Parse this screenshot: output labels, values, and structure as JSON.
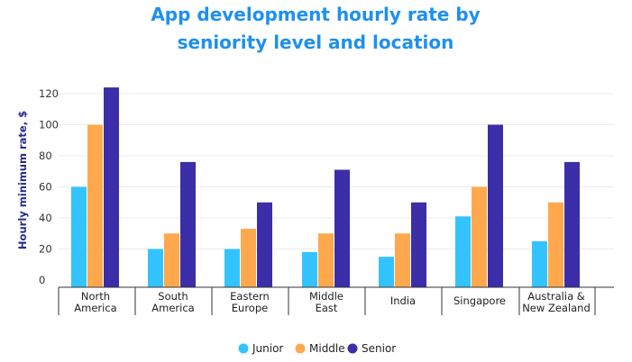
{
  "chart_data": {
    "type": "bar",
    "title_lines": [
      "App development hourly rate by",
      "seniority level and location"
    ],
    "ylabel": "Hourly minimum rate, $",
    "xlabel": "",
    "ylim": [
      0,
      130
    ],
    "yticks": [
      0,
      20,
      40,
      60,
      80,
      100,
      120
    ],
    "grid": true,
    "legend_position": "bottom-center",
    "categories": [
      [
        "North",
        "America"
      ],
      [
        "South",
        "America"
      ],
      [
        "Eastern",
        "Europe"
      ],
      [
        "Middle",
        "East"
      ],
      [
        "India"
      ],
      [
        "Singapore"
      ],
      [
        "Australia &",
        "New Zealand"
      ]
    ],
    "series": [
      {
        "name": "Junior",
        "color": "#33c4ff",
        "values": [
          60,
          20,
          20,
          18,
          15,
          41,
          25
        ]
      },
      {
        "name": "Middle",
        "color": "#ffa84d",
        "values": [
          100,
          30,
          33,
          30,
          30,
          60,
          50
        ]
      },
      {
        "name": "Senior",
        "color": "#3b2ea8",
        "values": [
          124,
          76,
          50,
          71,
          50,
          100,
          76
        ]
      }
    ]
  }
}
